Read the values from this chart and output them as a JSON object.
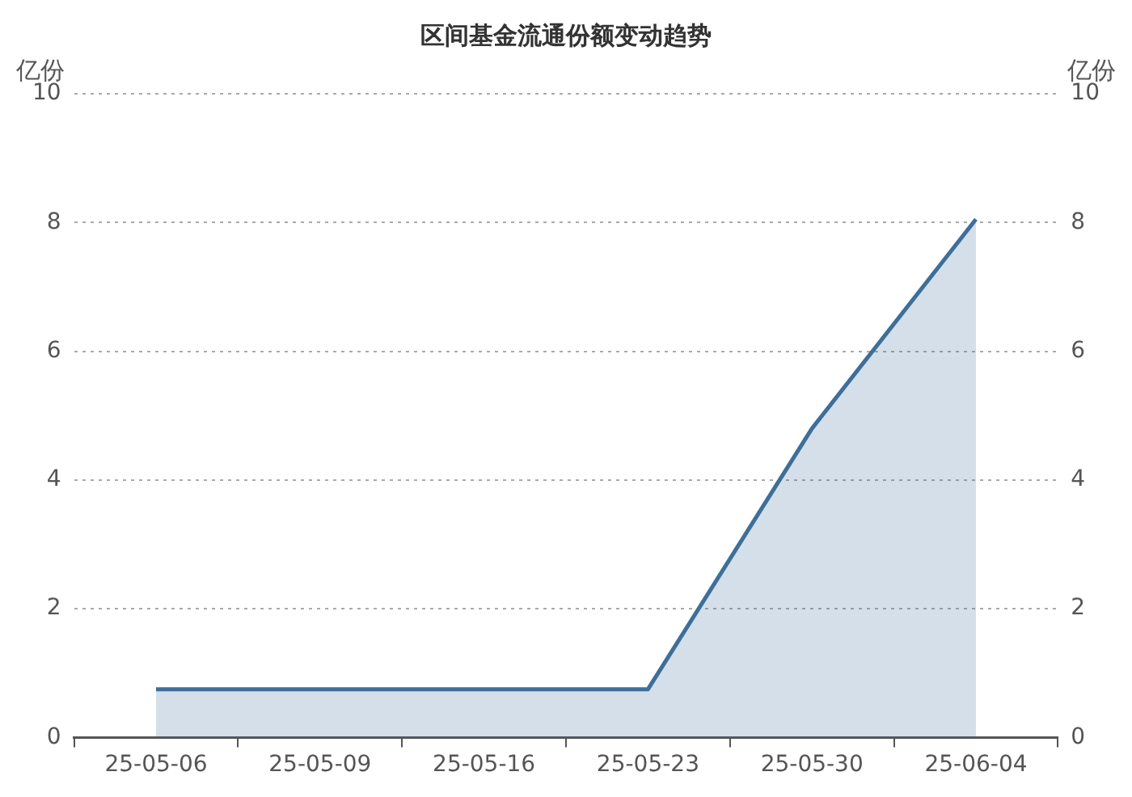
{
  "chart_data": {
    "type": "area",
    "title": "区间基金流通份额变动趋势",
    "ylabel": "亿份",
    "y2label": "亿份",
    "categories": [
      "25-05-06",
      "25-05-09",
      "25-05-16",
      "25-05-23",
      "25-05-30",
      "25-06-04"
    ],
    "series": [
      {
        "color": "#3d6f99",
        "values": [
          0.75,
          0.75,
          0.75,
          0.75,
          4.8,
          8.05
        ]
      }
    ],
    "ylim": [
      0,
      10
    ],
    "yticks": [
      0,
      2,
      4,
      6,
      8,
      10
    ],
    "y2lim": [
      0,
      10
    ],
    "y2ticks": [
      0,
      2,
      4,
      6,
      8,
      10
    ],
    "grid": "y",
    "line_style": "solid",
    "marker": "none",
    "legend": false
  }
}
